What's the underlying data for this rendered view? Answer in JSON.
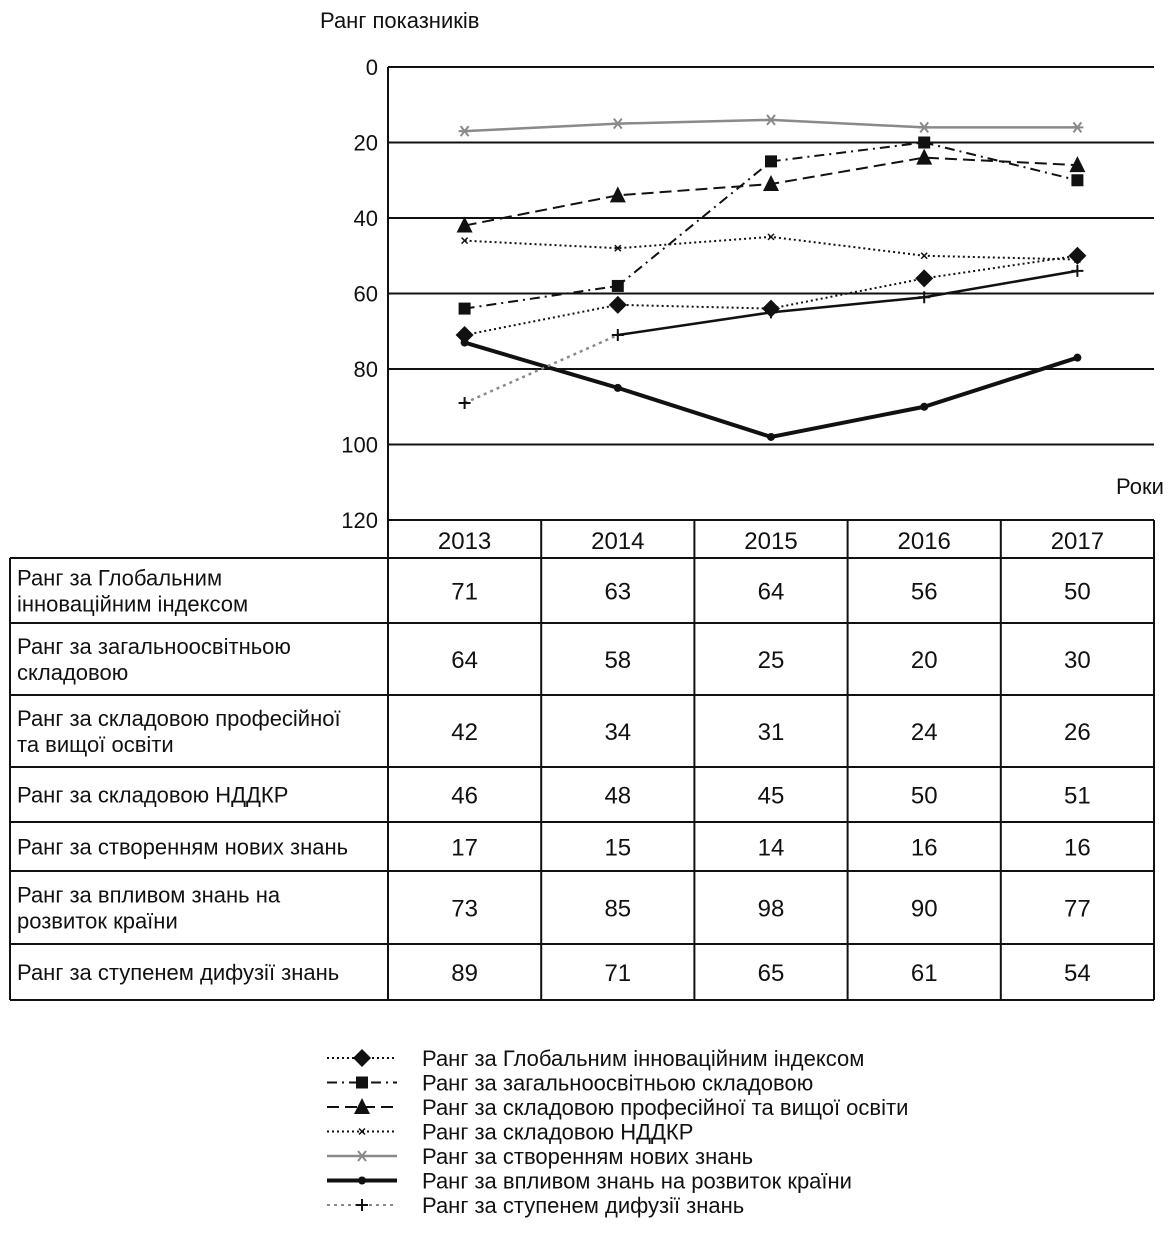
{
  "chart_data": {
    "type": "line",
    "ylabel": "Ранг показників",
    "xlabel": "Роки",
    "ylim": [
      0,
      120
    ],
    "y_inverted": true,
    "y_ticks": [
      "0",
      "20",
      "40",
      "60",
      "80",
      "100",
      "120"
    ],
    "categories": [
      "2013",
      "2014",
      "2015",
      "2016",
      "2017"
    ],
    "grid": "horizontal",
    "legend_position": "bottom",
    "series": [
      {
        "name": "Ранг за Глобальним інноваційним індексом",
        "row_label": "Ранг за Глобальним інноваційним індексом",
        "values": [
          71,
          63,
          64,
          56,
          50
        ],
        "color": "#111111",
        "style": "dotted",
        "marker": "diamond"
      },
      {
        "name": "Ранг за загальноосвітньою складовою",
        "row_label": "Ранг за загальноосвітньою складовою",
        "values": [
          64,
          58,
          25,
          20,
          30
        ],
        "color": "#111111",
        "style": "dashdot",
        "marker": "square"
      },
      {
        "name": "Ранг за складовою професійної та вищої освіти",
        "row_label": "Ранг за складовою професійної та вищої освіти",
        "values": [
          42,
          34,
          31,
          24,
          26
        ],
        "color": "#111111",
        "style": "dashed",
        "marker": "triangle"
      },
      {
        "name": "Ранг за складовою НДДКР",
        "row_label": "Ранг за складовою НДДКР",
        "values": [
          46,
          48,
          45,
          50,
          51
        ],
        "color": "#111111",
        "style": "dotted",
        "marker": "small-x"
      },
      {
        "name": "Ранг за створенням нових знань",
        "row_label": "Ранг за створенням нових знань",
        "values": [
          17,
          15,
          14,
          16,
          16
        ],
        "color": "#8a8a8a",
        "style": "solid",
        "marker": "asterisk"
      },
      {
        "name": "Ранг за впливом знань на розвиток країни",
        "row_label": "Ранг за впливом знань на розвиток країни",
        "values": [
          73,
          85,
          98,
          90,
          77
        ],
        "color": "#111111",
        "style": "solid-thick",
        "marker": "dot"
      },
      {
        "name": "Ранг за ступенем дифузії знань",
        "row_label": "Ранг за ступенем дифузії знань",
        "values": [
          89,
          71,
          65,
          61,
          54
        ],
        "color": "#111111",
        "style": "solid-mixed",
        "marker": "plus"
      }
    ]
  }
}
